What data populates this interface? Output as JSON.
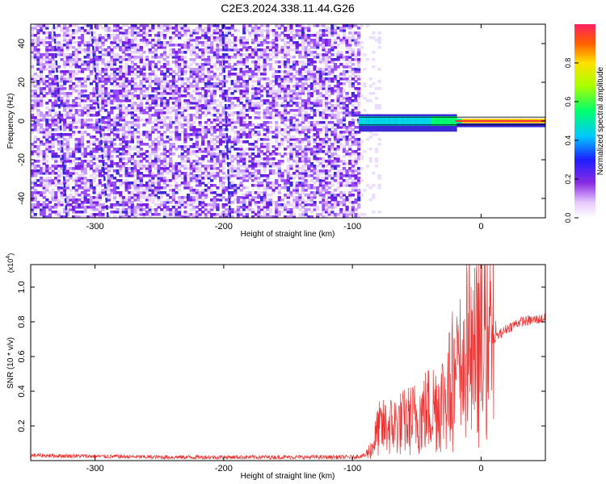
{
  "figure": {
    "title": "C2E3.2024.338.11.44.G26"
  },
  "colorbar": {
    "label": "Normalized spectral amplitude",
    "ticks": [
      0.0,
      0.2,
      0.4,
      0.6,
      0.8
    ],
    "range": [
      0.0,
      1.0
    ]
  },
  "chart_data": [
    {
      "type": "heatmap",
      "title": "",
      "xlabel": "Height of straight line (km)",
      "ylabel": "Frequency (Hz)",
      "xlim": [
        -350,
        50
      ],
      "ylim": [
        -50,
        50
      ],
      "xticks": [
        -300,
        -200,
        -100,
        0
      ],
      "yticks": [
        -40,
        -20,
        0,
        20,
        40
      ],
      "colormap": [
        "#ffffff",
        "#7b2fe0",
        "#2a2aff",
        "#00c8ff",
        "#00ff60",
        "#ffff00",
        "#ff2020"
      ],
      "features": {
        "noise_region_x": [
          -350,
          -95
        ],
        "carrier_start_x": -95,
        "carrier_center_freq": 0,
        "streaks_x": [
          -330,
          -300,
          -200
        ]
      }
    },
    {
      "type": "line",
      "title": "",
      "xlabel": "Height of straight line (km)",
      "ylabel": "SNR (10 * v/v)",
      "y_multiplier": "(x10",
      "y_multiplier_exp": "4",
      "xlim": [
        -350,
        50
      ],
      "ylim": [
        0,
        1.13
      ],
      "xticks": [
        -300,
        -200,
        -100,
        0
      ],
      "yticks": [
        0.2,
        0.4,
        0.6,
        0.8,
        1.0
      ],
      "line_color": "#ee3333",
      "series": [
        {
          "x": [
            -350,
            -300,
            -250,
            -200,
            -150,
            -100,
            -90,
            -85,
            -80,
            -70,
            -60,
            -50,
            -40,
            -30,
            -25,
            -20,
            -15,
            -10,
            -5,
            0,
            10,
            20,
            30,
            40,
            50
          ],
          "y": [
            0.03,
            0.025,
            0.02,
            0.02,
            0.02,
            0.02,
            0.03,
            0.07,
            0.18,
            0.2,
            0.22,
            0.25,
            0.3,
            0.35,
            0.4,
            0.45,
            0.55,
            0.6,
            0.6,
            0.65,
            0.7,
            0.76,
            0.8,
            0.81,
            0.82
          ]
        }
      ]
    }
  ]
}
